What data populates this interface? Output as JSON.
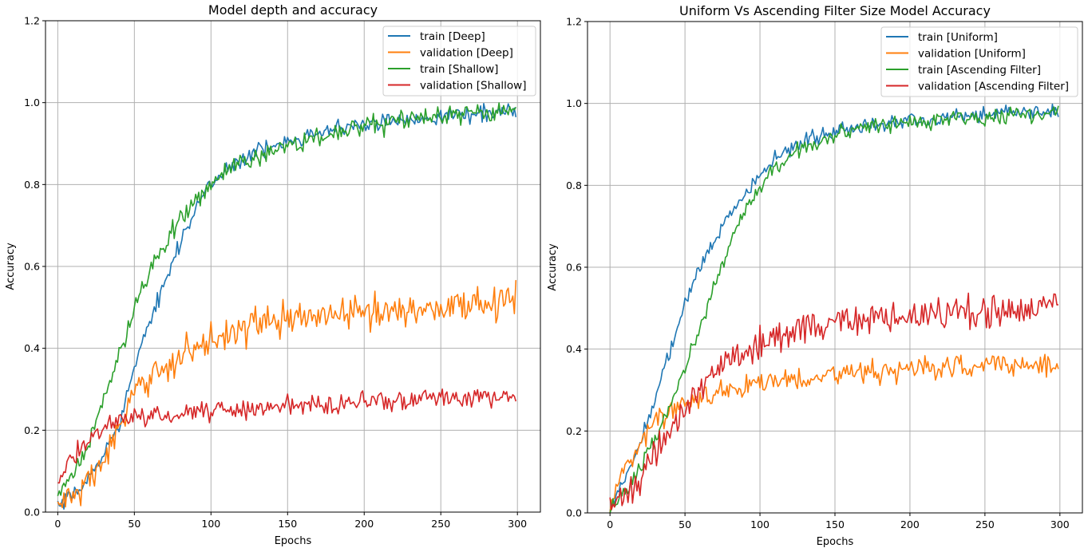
{
  "colors": {
    "blue": "#1f77b4",
    "orange": "#ff7f0e",
    "green": "#2ca02c",
    "red": "#d62728",
    "grid": "#b0b0b0",
    "frame": "#000000",
    "legend_border": "#cccccc"
  },
  "chart_data": [
    {
      "type": "line",
      "title": "Model depth and accuracy",
      "xlabel": "Epochs",
      "ylabel": "Accuracy",
      "xlim": [
        -8,
        315
      ],
      "ylim": [
        0,
        1.2
      ],
      "xticks": [
        0,
        50,
        100,
        150,
        200,
        250,
        300
      ],
      "yticks": [
        "0.0",
        "0.2",
        "0.4",
        "0.6",
        "0.8",
        "1.0",
        "1.2"
      ],
      "grid": true,
      "legend_position": "top-right",
      "epochs": 300,
      "series": [
        {
          "name": "train [Deep]",
          "color": "blue",
          "noise": 0.012,
          "points": [
            [
              0,
              0.01
            ],
            [
              10,
              0.04
            ],
            [
              20,
              0.08
            ],
            [
              30,
              0.14
            ],
            [
              40,
              0.22
            ],
            [
              50,
              0.35
            ],
            [
              60,
              0.46
            ],
            [
              70,
              0.57
            ],
            [
              80,
              0.66
            ],
            [
              90,
              0.74
            ],
            [
              100,
              0.8
            ],
            [
              110,
              0.84
            ],
            [
              120,
              0.86
            ],
            [
              130,
              0.88
            ],
            [
              140,
              0.89
            ],
            [
              150,
              0.91
            ],
            [
              160,
              0.92
            ],
            [
              170,
              0.93
            ],
            [
              180,
              0.935
            ],
            [
              190,
              0.94
            ],
            [
              200,
              0.945
            ],
            [
              210,
              0.95
            ],
            [
              220,
              0.955
            ],
            [
              240,
              0.965
            ],
            [
              260,
              0.97
            ],
            [
              280,
              0.975
            ],
            [
              300,
              0.985
            ]
          ]
        },
        {
          "name": "validation [Deep]",
          "color": "orange",
          "noise": 0.025,
          "points": [
            [
              0,
              0.02
            ],
            [
              10,
              0.04
            ],
            [
              20,
              0.07
            ],
            [
              30,
              0.13
            ],
            [
              40,
              0.2
            ],
            [
              50,
              0.28
            ],
            [
              60,
              0.33
            ],
            [
              70,
              0.36
            ],
            [
              80,
              0.38
            ],
            [
              90,
              0.4
            ],
            [
              100,
              0.42
            ],
            [
              110,
              0.44
            ],
            [
              120,
              0.45
            ],
            [
              130,
              0.46
            ],
            [
              140,
              0.465
            ],
            [
              150,
              0.47
            ],
            [
              170,
              0.48
            ],
            [
              190,
              0.485
            ],
            [
              210,
              0.49
            ],
            [
              230,
              0.495
            ],
            [
              250,
              0.5
            ],
            [
              270,
              0.51
            ],
            [
              300,
              0.52
            ]
          ]
        },
        {
          "name": "train [Shallow]",
          "color": "green",
          "noise": 0.015,
          "points": [
            [
              0,
              0.03
            ],
            [
              10,
              0.09
            ],
            [
              20,
              0.17
            ],
            [
              30,
              0.27
            ],
            [
              40,
              0.38
            ],
            [
              50,
              0.5
            ],
            [
              60,
              0.59
            ],
            [
              70,
              0.66
            ],
            [
              80,
              0.72
            ],
            [
              90,
              0.76
            ],
            [
              100,
              0.8
            ],
            [
              110,
              0.83
            ],
            [
              120,
              0.85
            ],
            [
              130,
              0.87
            ],
            [
              140,
              0.88
            ],
            [
              150,
              0.895
            ],
            [
              160,
              0.905
            ],
            [
              170,
              0.915
            ],
            [
              180,
              0.925
            ],
            [
              190,
              0.93
            ],
            [
              200,
              0.94
            ],
            [
              220,
              0.955
            ],
            [
              240,
              0.965
            ],
            [
              260,
              0.97
            ],
            [
              280,
              0.975
            ],
            [
              300,
              0.98
            ]
          ]
        },
        {
          "name": "validation [Shallow]",
          "color": "red",
          "noise": 0.015,
          "points": [
            [
              0,
              0.08
            ],
            [
              10,
              0.13
            ],
            [
              20,
              0.18
            ],
            [
              30,
              0.21
            ],
            [
              40,
              0.225
            ],
            [
              50,
              0.23
            ],
            [
              70,
              0.235
            ],
            [
              90,
              0.245
            ],
            [
              110,
              0.25
            ],
            [
              130,
              0.255
            ],
            [
              150,
              0.26
            ],
            [
              170,
              0.265
            ],
            [
              200,
              0.27
            ],
            [
              230,
              0.275
            ],
            [
              260,
              0.28
            ],
            [
              300,
              0.28
            ]
          ]
        }
      ]
    },
    {
      "type": "line",
      "title": "Uniform Vs Ascending Filter Size Model Accuracy",
      "xlabel": "Epochs",
      "ylabel": "Accuracy",
      "xlim": [
        -15,
        315
      ],
      "ylim": [
        0,
        1.2
      ],
      "xticks": [
        0,
        50,
        100,
        150,
        200,
        250,
        300
      ],
      "yticks": [
        "0.0",
        "0.2",
        "0.4",
        "0.6",
        "0.8",
        "1.0",
        "1.2"
      ],
      "grid": true,
      "legend_position": "top-right",
      "epochs": 300,
      "series": [
        {
          "name": "train [Uniform]",
          "color": "blue",
          "noise": 0.012,
          "points": [
            [
              0,
              0.01
            ],
            [
              10,
              0.08
            ],
            [
              20,
              0.17
            ],
            [
              30,
              0.28
            ],
            [
              40,
              0.4
            ],
            [
              50,
              0.51
            ],
            [
              60,
              0.6
            ],
            [
              70,
              0.67
            ],
            [
              80,
              0.73
            ],
            [
              90,
              0.78
            ],
            [
              100,
              0.82
            ],
            [
              110,
              0.86
            ],
            [
              120,
              0.89
            ],
            [
              130,
              0.91
            ],
            [
              140,
              0.92
            ],
            [
              150,
              0.935
            ],
            [
              160,
              0.94
            ],
            [
              170,
              0.945
            ],
            [
              180,
              0.95
            ],
            [
              200,
              0.96
            ],
            [
              220,
              0.965
            ],
            [
              240,
              0.97
            ],
            [
              260,
              0.975
            ],
            [
              280,
              0.98
            ],
            [
              300,
              0.98
            ]
          ]
        },
        {
          "name": "validation [Uniform]",
          "color": "orange",
          "noise": 0.018,
          "points": [
            [
              0,
              0.02
            ],
            [
              10,
              0.11
            ],
            [
              20,
              0.17
            ],
            [
              30,
              0.22
            ],
            [
              40,
              0.25
            ],
            [
              50,
              0.27
            ],
            [
              60,
              0.285
            ],
            [
              70,
              0.295
            ],
            [
              80,
              0.3
            ],
            [
              90,
              0.31
            ],
            [
              100,
              0.32
            ],
            [
              120,
              0.33
            ],
            [
              140,
              0.335
            ],
            [
              160,
              0.34
            ],
            [
              180,
              0.345
            ],
            [
              200,
              0.35
            ],
            [
              230,
              0.355
            ],
            [
              260,
              0.36
            ],
            [
              300,
              0.365
            ]
          ]
        },
        {
          "name": "train [Ascending Filter]",
          "color": "green",
          "noise": 0.012,
          "points": [
            [
              0,
              0.01
            ],
            [
              10,
              0.05
            ],
            [
              20,
              0.11
            ],
            [
              30,
              0.18
            ],
            [
              40,
              0.26
            ],
            [
              50,
              0.35
            ],
            [
              60,
              0.45
            ],
            [
              70,
              0.56
            ],
            [
              80,
              0.66
            ],
            [
              90,
              0.74
            ],
            [
              100,
              0.8
            ],
            [
              110,
              0.84
            ],
            [
              120,
              0.87
            ],
            [
              130,
              0.89
            ],
            [
              140,
              0.91
            ],
            [
              150,
              0.925
            ],
            [
              160,
              0.935
            ],
            [
              170,
              0.945
            ],
            [
              180,
              0.95
            ],
            [
              200,
              0.955
            ],
            [
              220,
              0.96
            ],
            [
              240,
              0.965
            ],
            [
              260,
              0.97
            ],
            [
              280,
              0.975
            ],
            [
              300,
              0.98
            ]
          ]
        },
        {
          "name": "validation [Ascending Filter]",
          "color": "red",
          "noise": 0.025,
          "points": [
            [
              0,
              0.02
            ],
            [
              10,
              0.05
            ],
            [
              20,
              0.09
            ],
            [
              30,
              0.14
            ],
            [
              40,
              0.2
            ],
            [
              50,
              0.26
            ],
            [
              60,
              0.3
            ],
            [
              70,
              0.34
            ],
            [
              80,
              0.37
            ],
            [
              90,
              0.39
            ],
            [
              100,
              0.41
            ],
            [
              110,
              0.43
            ],
            [
              120,
              0.44
            ],
            [
              130,
              0.45
            ],
            [
              150,
              0.46
            ],
            [
              170,
              0.47
            ],
            [
              190,
              0.48
            ],
            [
              210,
              0.485
            ],
            [
              230,
              0.49
            ],
            [
              250,
              0.495
            ],
            [
              270,
              0.5
            ],
            [
              300,
              0.51
            ]
          ]
        }
      ]
    }
  ]
}
